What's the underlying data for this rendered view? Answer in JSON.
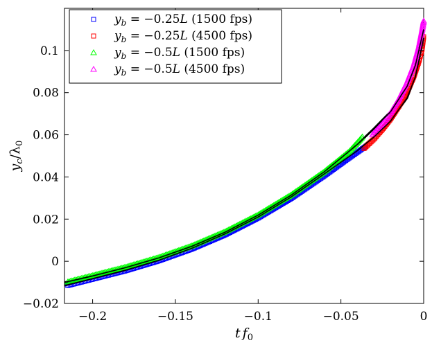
{
  "chart_data": {
    "type": "scatter",
    "xlabel": "t f0",
    "ylabel": "yc/λ0",
    "xlim": [
      -0.217,
      0.0
    ],
    "ylim": [
      -0.02,
      0.12
    ],
    "x_ticks": [
      -0.2,
      -0.15,
      -0.1,
      -0.05,
      0
    ],
    "x_tick_labels": [
      "−0.2",
      "−0.15",
      "−0.1",
      "−0.05",
      "0"
    ],
    "y_ticks": [
      -0.02,
      0,
      0.02,
      0.04,
      0.06,
      0.08,
      0.1
    ],
    "y_tick_labels": [
      "−0.02",
      "0",
      "0.02",
      "0.04",
      "0.06",
      "0.08",
      "0.1"
    ],
    "legend_position": "top-left",
    "grid": false,
    "series": [
      {
        "name": "yb = −0.25L (1500 fps)",
        "legend_math": "y_b = -0.25L",
        "legend_suffix": " (1500 fps)",
        "marker": "square",
        "color": "#0000ff",
        "x": [
          -0.215,
          -0.2,
          -0.18,
          -0.16,
          -0.14,
          -0.12,
          -0.1,
          -0.08,
          -0.06,
          -0.045,
          -0.035
        ],
        "y": [
          -0.0115,
          -0.0085,
          -0.0045,
          0.0002,
          0.0058,
          0.0125,
          0.0205,
          0.0298,
          0.0405,
          0.049,
          0.0545
        ]
      },
      {
        "name": "yb = −0.25L (4500 fps)",
        "legend_math": "y_b = -0.25L",
        "legend_suffix": " (4500 fps)",
        "marker": "square",
        "color": "#ff0000",
        "x": [
          -0.036,
          -0.03,
          -0.025,
          -0.02,
          -0.015,
          -0.01,
          -0.006,
          -0.003,
          -0.001,
          0.0
        ],
        "y": [
          0.0535,
          0.058,
          0.0625,
          0.0675,
          0.0735,
          0.0805,
          0.0875,
          0.0945,
          0.1005,
          0.1065
        ]
      },
      {
        "name": "yb = −0.5L (1500 fps)",
        "legend_math": "y_b = -0.5L",
        "legend_suffix": " (1500 fps)",
        "marker": "triangle",
        "color": "#00ff00",
        "x": [
          -0.215,
          -0.2,
          -0.18,
          -0.16,
          -0.14,
          -0.12,
          -0.1,
          -0.08,
          -0.06,
          -0.045,
          -0.037
        ],
        "y": [
          -0.0098,
          -0.0068,
          -0.0028,
          0.0018,
          0.0073,
          0.014,
          0.022,
          0.0315,
          0.0425,
          0.052,
          0.059
        ]
      },
      {
        "name": "yb = −0.5L (4500 fps)",
        "legend_math": "y_b = -0.5L",
        "legend_suffix": " (4500 fps)",
        "marker": "triangle",
        "color": "#ff00ff",
        "x": [
          -0.031,
          -0.025,
          -0.02,
          -0.015,
          -0.01,
          -0.006,
          -0.003,
          -0.001,
          0.0
        ],
        "y": [
          0.06,
          0.065,
          0.0705,
          0.077,
          0.085,
          0.093,
          0.1015,
          0.1095,
          0.114
        ]
      }
    ],
    "fit_curves": [
      {
        "color": "#000000",
        "x": [
          -0.217,
          -0.2,
          -0.18,
          -0.16,
          -0.14,
          -0.12,
          -0.1,
          -0.08,
          -0.06,
          -0.04,
          -0.03,
          -0.02,
          -0.01,
          -0.005,
          0.0
        ],
        "y": [
          -0.0115,
          -0.0082,
          -0.0042,
          0.0005,
          0.0062,
          0.013,
          0.021,
          0.0305,
          0.0415,
          0.0525,
          0.059,
          0.0665,
          0.0775,
          0.0875,
          0.106
        ]
      },
      {
        "color": "#000000",
        "x": [
          -0.217,
          -0.2,
          -0.18,
          -0.16,
          -0.14,
          -0.12,
          -0.1,
          -0.08,
          -0.06,
          -0.04,
          -0.03,
          -0.02,
          -0.01,
          -0.005,
          0.0
        ],
        "y": [
          -0.01,
          -0.007,
          -0.003,
          0.0016,
          0.0071,
          0.0138,
          0.0219,
          0.0314,
          0.0425,
          0.0555,
          0.063,
          0.071,
          0.083,
          0.093,
          0.11
        ]
      }
    ]
  }
}
